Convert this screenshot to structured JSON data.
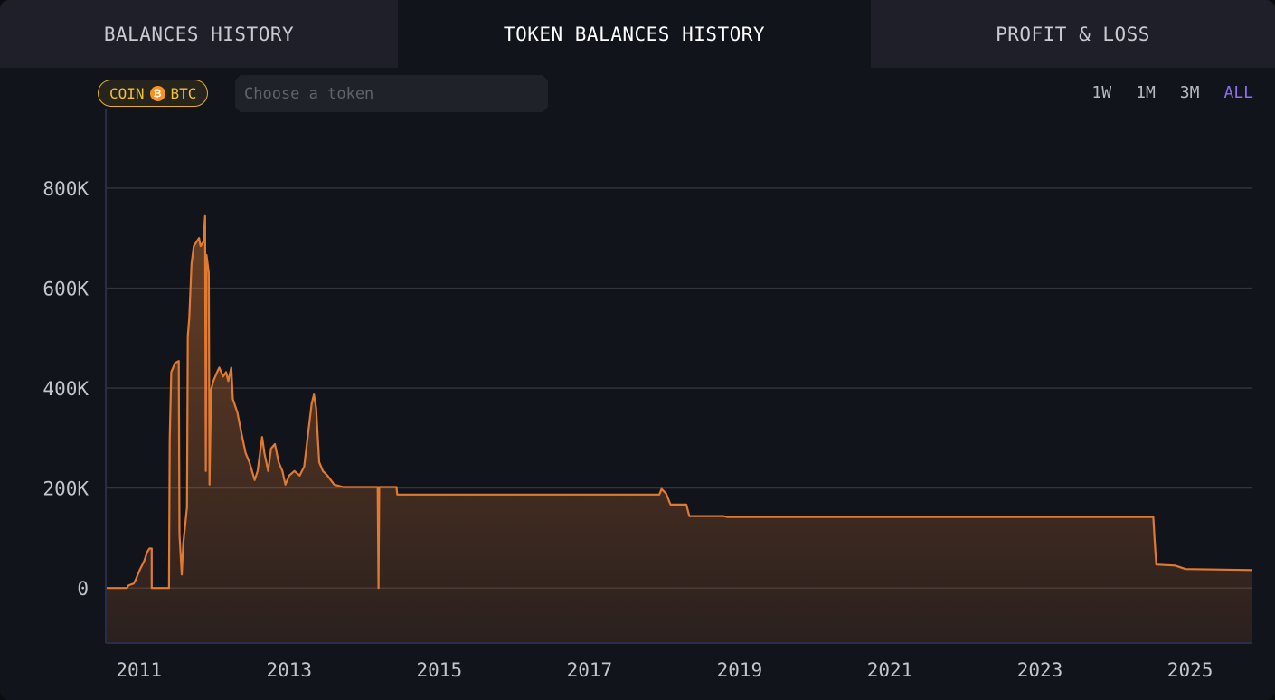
{
  "tabs": [
    {
      "label": "BALANCES HISTORY",
      "active": false
    },
    {
      "label": "TOKEN BALANCES HISTORY",
      "active": true
    },
    {
      "label": "PROFIT & LOSS",
      "active": false
    }
  ],
  "filter": {
    "badge_prefix": "COIN",
    "badge_icon": "bitcoin-icon",
    "badge_symbol": "BTC",
    "token_placeholder": "Choose a token",
    "token_value": ""
  },
  "ranges": [
    {
      "label": "1W",
      "active": false
    },
    {
      "label": "1M",
      "active": false
    },
    {
      "label": "3M",
      "active": false
    },
    {
      "label": "ALL",
      "active": true
    }
  ],
  "colors": {
    "line": "#e07a30",
    "accent": "#8f6ef0",
    "badge": "#e5b12a"
  },
  "chart_data": {
    "type": "area",
    "xlim": [
      2010.57,
      2025.83
    ],
    "ylim": [
      -110000,
      950000
    ],
    "grid": true,
    "x_ticks": [
      2011,
      2013,
      2015,
      2017,
      2019,
      2021,
      2023,
      2025
    ],
    "x_tick_labels": [
      "2011",
      "2013",
      "2015",
      "2017",
      "2019",
      "2021",
      "2023",
      "2025"
    ],
    "y_ticks": [
      0,
      200000,
      400000,
      600000,
      800000
    ],
    "y_tick_labels": [
      "0",
      "200K",
      "400K",
      "600K",
      "800K"
    ],
    "series": [
      {
        "x": [
          2010.57,
          2010.84,
          2010.86,
          2010.93,
          2010.96,
          2011.01,
          2011.07,
          2011.11,
          2011.14,
          2011.17,
          2011.17,
          2011.4,
          2011.41,
          2011.43,
          2011.48,
          2011.53,
          2011.54,
          2011.57,
          2011.59,
          2011.61,
          2011.64,
          2011.65,
          2011.67,
          2011.7,
          2011.73,
          2011.8,
          2011.82,
          2011.86,
          2011.88,
          2011.89,
          2011.9,
          2011.93,
          2011.94,
          2011.96,
          2011.99,
          2012.04,
          2012.07,
          2012.12,
          2012.16,
          2012.19,
          2012.23,
          2012.25,
          2012.31,
          2012.37,
          2012.42,
          2012.47,
          2012.54,
          2012.58,
          2012.64,
          2012.67,
          2012.72,
          2012.76,
          2012.81,
          2012.86,
          2012.91,
          2012.95,
          2013.0,
          2013.07,
          2013.14,
          2013.2,
          2013.25,
          2013.3,
          2013.33,
          2013.36,
          2013.4,
          2013.45,
          2013.51,
          2013.6,
          2013.72,
          2013.96,
          2014.18,
          2014.19,
          2014.2,
          2014.43,
          2014.44,
          2017.93,
          2017.96,
          2018.02,
          2018.08,
          2018.29,
          2018.33,
          2018.78,
          2018.84,
          2024.51,
          2024.53,
          2024.55,
          2024.8,
          2024.94,
          2025.83
        ],
        "y": [
          0,
          0,
          5000,
          9000,
          18000,
          36000,
          54000,
          72000,
          79000,
          79000,
          0,
          0,
          297000,
          432000,
          450000,
          454000,
          108000,
          27000,
          90000,
          117000,
          162000,
          504000,
          540000,
          648000,
          684000,
          700000,
          684000,
          693000,
          744000,
          234000,
          666000,
          630000,
          207000,
          396000,
          414000,
          432000,
          441000,
          423000,
          432000,
          414000,
          441000,
          378000,
          351000,
          306000,
          270000,
          252000,
          216000,
          234000,
          302000,
          270000,
          234000,
          279000,
          288000,
          252000,
          234000,
          207000,
          225000,
          234000,
          225000,
          243000,
          306000,
          369000,
          387000,
          360000,
          252000,
          234000,
          225000,
          207000,
          202000,
          202000,
          202000,
          0,
          202000,
          202000,
          187000,
          187000,
          198000,
          189000,
          167000,
          167000,
          144000,
          144000,
          142000,
          142000,
          90000,
          47000,
          45000,
          38000,
          36000
        ]
      }
    ]
  }
}
